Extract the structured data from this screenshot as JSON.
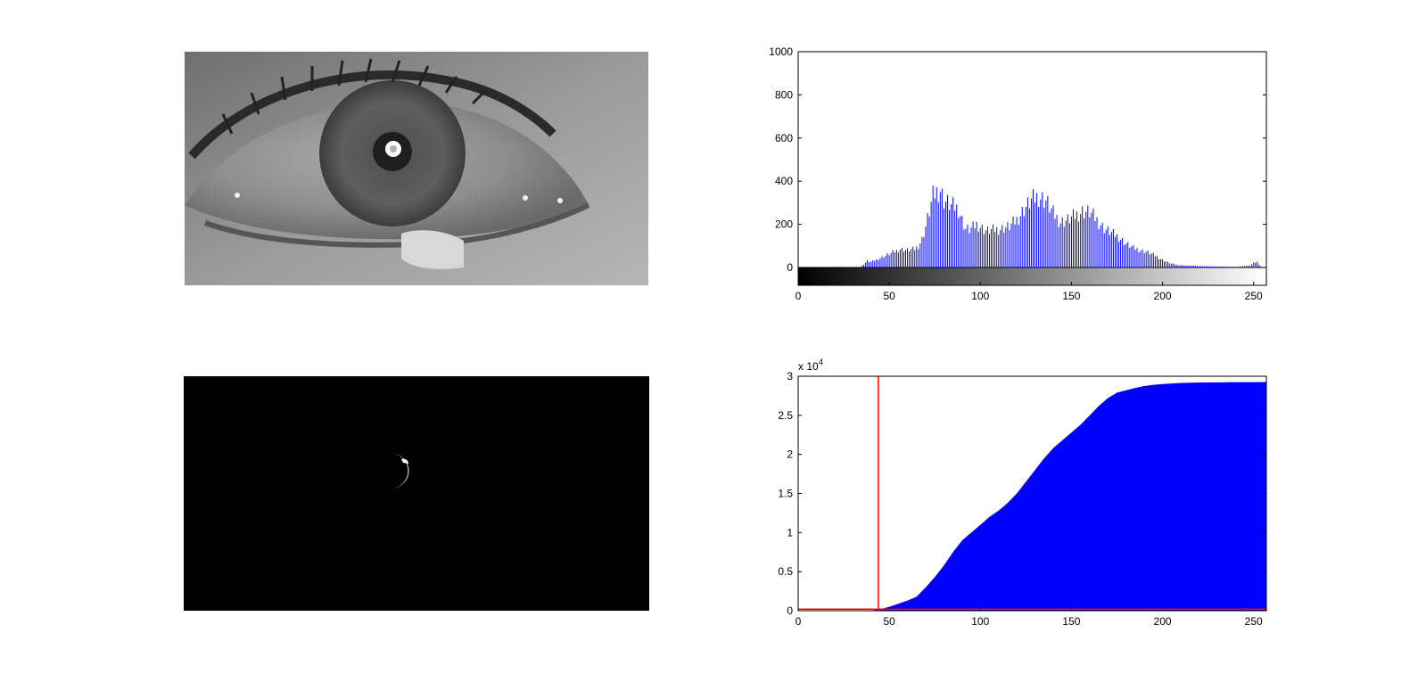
{
  "window": {
    "title": ""
  },
  "panels": {
    "eye_image": {
      "kind": "grayscale-photo",
      "content": "eye-closeup"
    },
    "mask_image": {
      "kind": "binary-mask",
      "content": "pupil-ring"
    }
  },
  "colors": {
    "histogram_bars": "#0000ff",
    "cumulative_fill": "#0000ff",
    "threshold_line": "#ff0000",
    "axes": "#000000",
    "background": "#ffffff"
  },
  "chart_data": [
    {
      "type": "bar",
      "title": "",
      "xlabel": "",
      "ylabel": "",
      "xlim": [
        0,
        255
      ],
      "ylim": [
        0,
        1000
      ],
      "colorbar": "grayscale-gradient-below-axis",
      "x_ticks": [
        "0",
        "50",
        "100",
        "150",
        "200",
        "250"
      ],
      "y_ticks": [
        "0",
        "200",
        "400",
        "600",
        "800",
        "1000"
      ],
      "grid": false,
      "profile": [
        [
          0,
          0
        ],
        [
          34,
          0
        ],
        [
          36,
          15
        ],
        [
          38,
          30
        ],
        [
          40,
          25
        ],
        [
          44,
          40
        ],
        [
          48,
          55
        ],
        [
          52,
          70
        ],
        [
          56,
          85
        ],
        [
          60,
          80
        ],
        [
          64,
          85
        ],
        [
          66,
          100
        ],
        [
          68,
          130
        ],
        [
          70,
          190
        ],
        [
          72,
          260
        ],
        [
          74,
          330
        ],
        [
          76,
          350
        ],
        [
          78,
          360
        ],
        [
          80,
          310
        ],
        [
          82,
          300
        ],
        [
          84,
          285
        ],
        [
          86,
          280
        ],
        [
          88,
          270
        ],
        [
          90,
          220
        ],
        [
          92,
          180
        ],
        [
          94,
          175
        ],
        [
          96,
          185
        ],
        [
          98,
          200
        ],
        [
          100,
          190
        ],
        [
          102,
          175
        ],
        [
          104,
          170
        ],
        [
          108,
          175
        ],
        [
          112,
          180
        ],
        [
          116,
          190
        ],
        [
          120,
          220
        ],
        [
          124,
          270
        ],
        [
          128,
          310
        ],
        [
          132,
          330
        ],
        [
          134,
          320
        ],
        [
          136,
          310
        ],
        [
          140,
          250
        ],
        [
          144,
          210
        ],
        [
          148,
          220
        ],
        [
          152,
          240
        ],
        [
          156,
          260
        ],
        [
          160,
          255
        ],
        [
          164,
          220
        ],
        [
          168,
          180
        ],
        [
          172,
          160
        ],
        [
          176,
          140
        ],
        [
          180,
          110
        ],
        [
          184,
          90
        ],
        [
          188,
          80
        ],
        [
          192,
          70
        ],
        [
          196,
          55
        ],
        [
          200,
          35
        ],
        [
          204,
          20
        ],
        [
          208,
          12
        ],
        [
          215,
          8
        ],
        [
          225,
          5
        ],
        [
          240,
          3
        ],
        [
          248,
          8
        ],
        [
          250,
          20
        ],
        [
          252,
          25
        ],
        [
          254,
          5
        ],
        [
          255,
          0
        ]
      ]
    },
    {
      "type": "area",
      "title": "",
      "xlabel": "",
      "ylabel": "",
      "xlim": [
        0,
        255
      ],
      "ylim": [
        0,
        30000
      ],
      "y_exponent_label": "x 10",
      "y_exponent_power": "4",
      "x_ticks": [
        "0",
        "50",
        "100",
        "150",
        "200",
        "250"
      ],
      "y_ticks": [
        "0",
        "0.5",
        "1",
        "1.5",
        "2",
        "2.5",
        "3"
      ],
      "grid": false,
      "threshold_x": 44,
      "threshold_level": 200,
      "cumulative_points": [
        [
          0,
          0
        ],
        [
          38,
          0
        ],
        [
          42,
          80
        ],
        [
          46,
          250
        ],
        [
          50,
          500
        ],
        [
          55,
          900
        ],
        [
          60,
          1300
        ],
        [
          65,
          1800
        ],
        [
          70,
          3000
        ],
        [
          75,
          4300
        ],
        [
          80,
          5800
        ],
        [
          85,
          7500
        ],
        [
          90,
          9000
        ],
        [
          95,
          10000
        ],
        [
          100,
          11000
        ],
        [
          105,
          12000
        ],
        [
          110,
          12800
        ],
        [
          115,
          13800
        ],
        [
          120,
          15000
        ],
        [
          125,
          16500
        ],
        [
          130,
          18000
        ],
        [
          135,
          19500
        ],
        [
          140,
          20800
        ],
        [
          145,
          21800
        ],
        [
          150,
          22800
        ],
        [
          155,
          23800
        ],
        [
          160,
          25000
        ],
        [
          165,
          26200
        ],
        [
          170,
          27200
        ],
        [
          175,
          27900
        ],
        [
          180,
          28200
        ],
        [
          185,
          28500
        ],
        [
          190,
          28750
        ],
        [
          195,
          28900
        ],
        [
          200,
          29000
        ],
        [
          210,
          29150
        ],
        [
          220,
          29200
        ],
        [
          230,
          29220
        ],
        [
          240,
          29240
        ],
        [
          250,
          29250
        ],
        [
          255,
          29260
        ]
      ]
    }
  ]
}
